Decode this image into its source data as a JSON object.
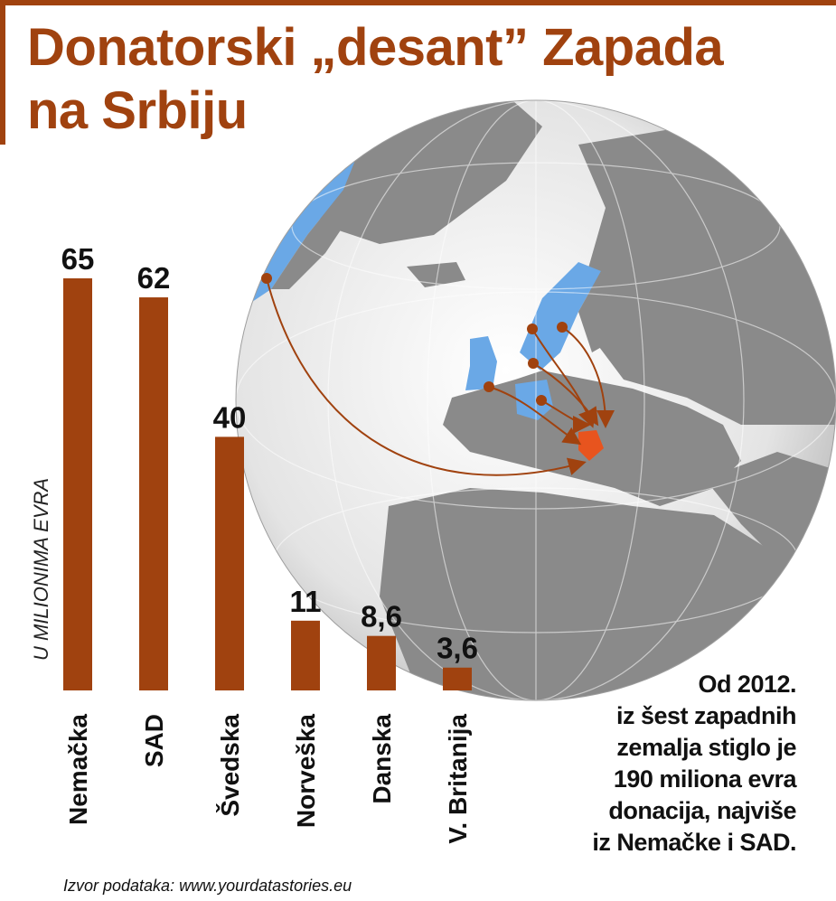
{
  "title": {
    "line1": "Donatorski „desant” Zapada",
    "line2": "na Srbiju"
  },
  "chart_data": {
    "type": "bar",
    "categories": [
      "Nemačka",
      "SAD",
      "Švedska",
      "Norveška",
      "Danska",
      "V. Britanija"
    ],
    "values": [
      65,
      62,
      40,
      11,
      8.6,
      3.6
    ],
    "value_labels": [
      "65",
      "62",
      "40",
      "11",
      "8,6",
      "3,6"
    ],
    "ylabel": "U MILIONIMA EVRA",
    "ylim": [
      0,
      65
    ],
    "bar_color": "#a0420f",
    "grid": false
  },
  "note": {
    "line1": "Od 2012.",
    "line2": "iz šest zapadnih",
    "line3": "zemalja stiglo je",
    "line4": "190 miliona evra",
    "line5": "donacija, najviše",
    "line6": "iz Nemačke i SAD."
  },
  "source": "Izvor podataka: www.yourdatastories.eu",
  "colors": {
    "accent": "#a0420f",
    "land": "#8a8a8a",
    "donor_land": "#6aa8e6",
    "serbia": "#e8541e"
  }
}
